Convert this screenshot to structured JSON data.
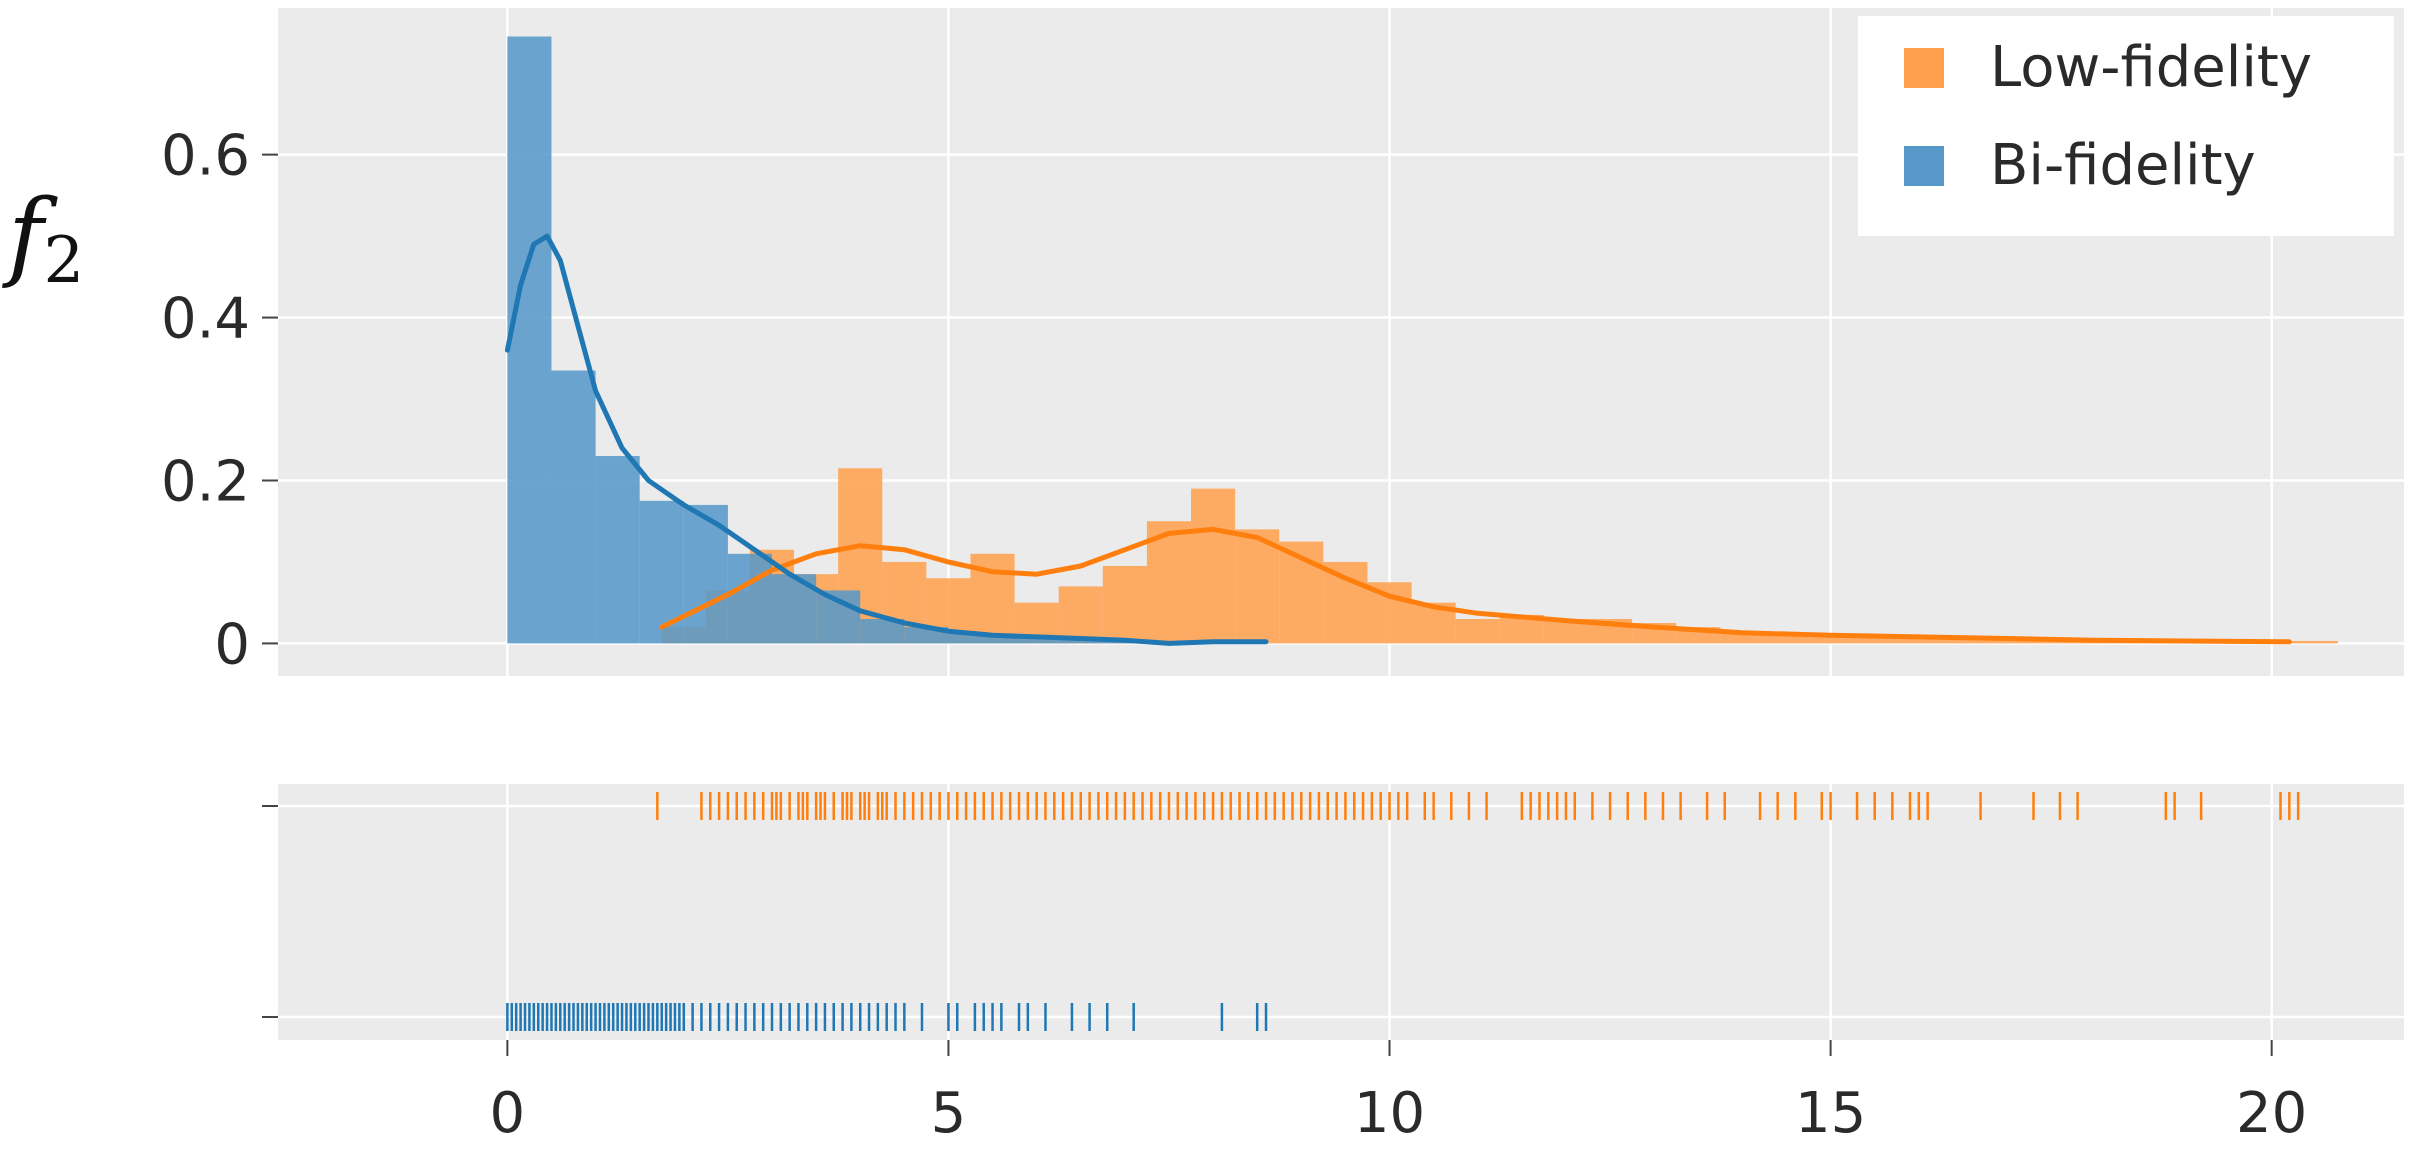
{
  "chart_data": {
    "type": "histogram-with-rug",
    "ylabel": "f",
    "ylabel_subscript": "2",
    "xlim": [
      -2.6,
      21.5
    ],
    "ylim": [
      -0.04,
      0.78
    ],
    "x_ticks": [
      0,
      5,
      10,
      15,
      20
    ],
    "y_ticks": [
      {
        "value": 0,
        "label": "0"
      },
      {
        "value": 0.2,
        "label": "0.2"
      },
      {
        "value": 0.4,
        "label": "0.4"
      },
      {
        "value": 0.6,
        "label": "0.6"
      }
    ],
    "grid": true,
    "legend_placement": "top-right",
    "series": [
      {
        "name": "Low-fidelity",
        "color": "#ff7f0e",
        "bar_color": "#ffa04f",
        "bins": [
          [
            1.75,
            2.25,
            0.02
          ],
          [
            2.25,
            2.75,
            0.065
          ],
          [
            2.75,
            3.25,
            0.115
          ],
          [
            3.25,
            3.75,
            0.085
          ],
          [
            3.75,
            4.25,
            0.215
          ],
          [
            4.25,
            4.75,
            0.1
          ],
          [
            4.75,
            5.25,
            0.08
          ],
          [
            5.25,
            5.75,
            0.11
          ],
          [
            5.75,
            6.25,
            0.05
          ],
          [
            6.25,
            6.75,
            0.07
          ],
          [
            6.75,
            7.25,
            0.095
          ],
          [
            7.25,
            7.75,
            0.15
          ],
          [
            7.75,
            8.25,
            0.19
          ],
          [
            8.25,
            8.75,
            0.14
          ],
          [
            8.75,
            9.25,
            0.125
          ],
          [
            9.25,
            9.75,
            0.1
          ],
          [
            9.75,
            10.25,
            0.075
          ],
          [
            10.25,
            10.75,
            0.05
          ],
          [
            10.75,
            11.25,
            0.03
          ],
          [
            11.25,
            11.75,
            0.035
          ],
          [
            11.75,
            12.25,
            0.03
          ],
          [
            12.25,
            12.75,
            0.03
          ],
          [
            12.75,
            13.25,
            0.025
          ],
          [
            13.25,
            13.75,
            0.02
          ],
          [
            13.75,
            14.25,
            0.015
          ],
          [
            14.25,
            14.75,
            0.01
          ],
          [
            14.75,
            15.25,
            0.01
          ],
          [
            15.25,
            15.75,
            0.01
          ],
          [
            15.75,
            16.25,
            0.01
          ],
          [
            16.25,
            16.75,
            0.006
          ],
          [
            16.75,
            17.25,
            0.005
          ],
          [
            17.25,
            17.75,
            0.005
          ],
          [
            17.75,
            18.25,
            0.004
          ],
          [
            18.25,
            18.75,
            0.004
          ],
          [
            18.75,
            19.25,
            0.005
          ],
          [
            19.25,
            19.75,
            0.003
          ],
          [
            19.75,
            20.25,
            0.003
          ],
          [
            20.25,
            20.75,
            0.003
          ]
        ],
        "kde": {
          "x": [
            1.75,
            2.5,
            3.0,
            3.5,
            4.0,
            4.5,
            5.0,
            5.5,
            6.0,
            6.5,
            7.0,
            7.5,
            8.0,
            8.5,
            9.0,
            9.5,
            10.0,
            10.5,
            11.0,
            12.0,
            13.0,
            14.0,
            15.0,
            16.0,
            17.0,
            18.0,
            19.0,
            20.2
          ],
          "y": [
            0.02,
            0.06,
            0.09,
            0.11,
            0.12,
            0.115,
            0.1,
            0.088,
            0.085,
            0.095,
            0.115,
            0.135,
            0.14,
            0.13,
            0.105,
            0.08,
            0.058,
            0.045,
            0.037,
            0.028,
            0.02,
            0.013,
            0.01,
            0.008,
            0.006,
            0.004,
            0.003,
            0.002
          ]
        },
        "rug": [
          1.7,
          2.2,
          2.3,
          2.4,
          2.5,
          2.6,
          2.7,
          2.8,
          2.9,
          3.0,
          3.05,
          3.1,
          3.2,
          3.3,
          3.35,
          3.4,
          3.5,
          3.55,
          3.6,
          3.7,
          3.8,
          3.85,
          3.9,
          4.0,
          4.05,
          4.1,
          4.2,
          4.25,
          4.3,
          4.4,
          4.5,
          4.6,
          4.7,
          4.8,
          4.9,
          5.0,
          5.1,
          5.2,
          5.3,
          5.4,
          5.5,
          5.6,
          5.7,
          5.8,
          5.9,
          6.0,
          6.1,
          6.2,
          6.3,
          6.4,
          6.5,
          6.6,
          6.7,
          6.8,
          6.9,
          7.0,
          7.1,
          7.2,
          7.3,
          7.4,
          7.5,
          7.6,
          7.7,
          7.8,
          7.9,
          8.0,
          8.1,
          8.2,
          8.3,
          8.4,
          8.5,
          8.6,
          8.7,
          8.8,
          8.9,
          9.0,
          9.1,
          9.2,
          9.3,
          9.4,
          9.5,
          9.6,
          9.7,
          9.8,
          9.9,
          10.0,
          10.1,
          10.2,
          10.4,
          10.5,
          10.7,
          10.9,
          11.1,
          11.5,
          11.6,
          11.7,
          11.8,
          11.9,
          12.0,
          12.1,
          12.3,
          12.5,
          12.7,
          12.9,
          13.1,
          13.3,
          13.6,
          13.8,
          14.2,
          14.4,
          14.6,
          14.9,
          15.0,
          15.3,
          15.5,
          15.7,
          15.9,
          16.0,
          16.1,
          16.7,
          17.3,
          17.6,
          17.8,
          18.8,
          18.9,
          19.2,
          20.1,
          20.2,
          20.3
        ],
        "rug_level": 1
      },
      {
        "name": "Bi-fidelity",
        "color": "#1f77b4",
        "bar_color": "#5898c8",
        "bins": [
          [
            0.0,
            0.5,
            0.745
          ],
          [
            0.5,
            1.0,
            0.335
          ],
          [
            1.0,
            1.5,
            0.23
          ],
          [
            1.5,
            2.0,
            0.175
          ],
          [
            2.0,
            2.5,
            0.17
          ],
          [
            2.5,
            3.0,
            0.11
          ],
          [
            3.0,
            3.5,
            0.085
          ],
          [
            3.5,
            4.0,
            0.065
          ],
          [
            4.0,
            4.5,
            0.03
          ],
          [
            4.5,
            5.0,
            0.02
          ],
          [
            5.0,
            5.5,
            0.012
          ],
          [
            5.5,
            6.0,
            0.01
          ],
          [
            6.0,
            6.5,
            0.006
          ],
          [
            6.5,
            7.0,
            0.004
          ],
          [
            7.0,
            7.5,
            0.003
          ],
          [
            7.5,
            8.0,
            0.002
          ],
          [
            8.0,
            8.5,
            0.003
          ],
          [
            8.5,
            8.6,
            0.002
          ]
        ],
        "kde": {
          "x": [
            0.0,
            0.15,
            0.3,
            0.45,
            0.6,
            0.8,
            1.0,
            1.3,
            1.6,
            2.0,
            2.4,
            2.8,
            3.2,
            3.6,
            4.0,
            4.5,
            5.0,
            5.5,
            6.0,
            6.5,
            7.0,
            7.5,
            8.0,
            8.6
          ],
          "y": [
            0.36,
            0.44,
            0.49,
            0.5,
            0.47,
            0.39,
            0.31,
            0.24,
            0.2,
            0.17,
            0.145,
            0.115,
            0.085,
            0.06,
            0.04,
            0.025,
            0.015,
            0.01,
            0.008,
            0.006,
            0.004,
            0.0,
            0.002,
            0.002
          ]
        },
        "rug": [
          0.0,
          0.05,
          0.1,
          0.15,
          0.2,
          0.25,
          0.3,
          0.35,
          0.4,
          0.45,
          0.5,
          0.55,
          0.6,
          0.65,
          0.7,
          0.75,
          0.8,
          0.85,
          0.9,
          0.95,
          1.0,
          1.05,
          1.1,
          1.15,
          1.2,
          1.25,
          1.3,
          1.35,
          1.4,
          1.45,
          1.5,
          1.55,
          1.6,
          1.65,
          1.7,
          1.75,
          1.8,
          1.85,
          1.9,
          1.95,
          2.0,
          2.1,
          2.2,
          2.3,
          2.4,
          2.5,
          2.6,
          2.7,
          2.8,
          2.9,
          3.0,
          3.1,
          3.2,
          3.3,
          3.4,
          3.5,
          3.6,
          3.7,
          3.8,
          3.9,
          4.0,
          4.1,
          4.2,
          4.3,
          4.4,
          4.5,
          4.7,
          5.0,
          5.1,
          5.3,
          5.4,
          5.5,
          5.6,
          5.8,
          5.9,
          6.1,
          6.4,
          6.6,
          6.8,
          7.1,
          8.1,
          8.5,
          8.6
        ],
        "rug_level": 0
      }
    ]
  }
}
